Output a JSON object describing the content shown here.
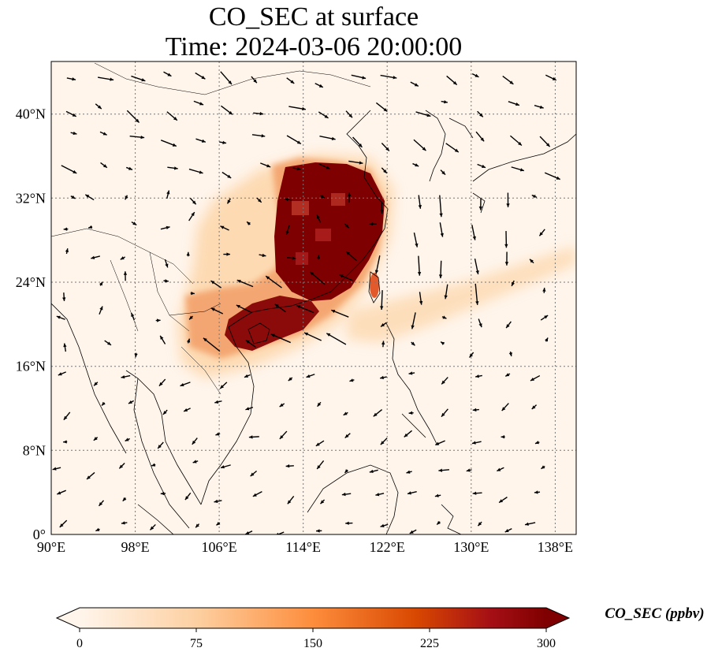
{
  "title": {
    "line1": "CO_SEC at surface",
    "line2": "Time: 2024-03-06 20:00:00"
  },
  "map": {
    "lon_range": [
      90,
      140
    ],
    "lat_range": [
      0,
      45
    ],
    "lon_ticks": [
      "90°E",
      "98°E",
      "106°E",
      "114°E",
      "122°E",
      "130°E",
      "138°E"
    ],
    "lat_ticks": [
      "0°",
      "8°N",
      "16°N",
      "24°N",
      "32°N",
      "40°N"
    ],
    "gridlines": true,
    "field": "CO_SEC",
    "overlay": "wind vectors"
  },
  "colorbar": {
    "label": "CO_SEC (ppbv)",
    "ticks": [
      "0",
      "75",
      "150",
      "225",
      "300"
    ],
    "range": [
      0,
      300
    ],
    "extend": "both",
    "colormap": [
      "#fff5eb",
      "#fdd0a2",
      "#fd8d3c",
      "#d94801",
      "#a50f15",
      "#7f0000"
    ]
  }
}
